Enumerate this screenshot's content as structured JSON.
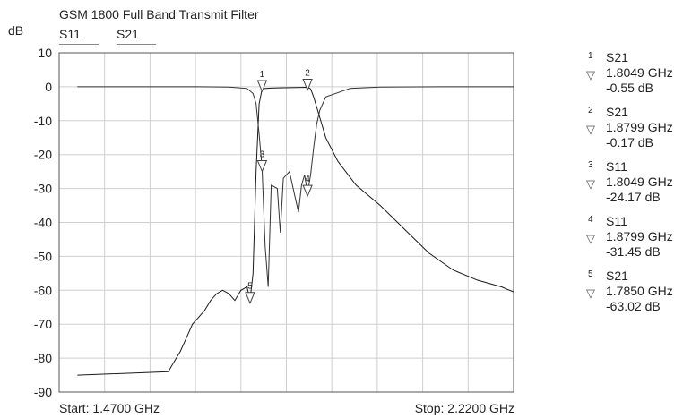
{
  "title": "GSM 1800 Full Band Transmit Filter",
  "unit_label": "dB",
  "legend": [
    "S11",
    "S21"
  ],
  "start_label": "Start: 1.4700 GHz",
  "stop_label": "Stop: 2.2200 GHz",
  "markers": [
    {
      "id": "1",
      "trace": "S21",
      "freq": "1.8049 GHz",
      "value": "-0.55 dB"
    },
    {
      "id": "2",
      "trace": "S21",
      "freq": "1.8799 GHz",
      "value": "-0.17 dB"
    },
    {
      "id": "3",
      "trace": "S11",
      "freq": "1.8049 GHz",
      "value": "-24.17 dB"
    },
    {
      "id": "4",
      "trace": "S11",
      "freq": "1.8799 GHz",
      "value": "-31.45 dB"
    },
    {
      "id": "5",
      "trace": "S21",
      "freq": "1.7850 GHz",
      "value": "-63.02 dB"
    }
  ],
  "chart_data": {
    "type": "line",
    "title": "GSM 1800 Full Band Transmit Filter",
    "ylabel": "dB",
    "xlim": [
      1.47,
      2.22
    ],
    "ylim": [
      -90,
      10
    ],
    "x_ticks_count": 10,
    "y_ticks": [
      10,
      0,
      -10,
      -20,
      -30,
      -40,
      -50,
      -60,
      -70,
      -80,
      -90
    ],
    "grid": true,
    "series": [
      {
        "name": "S21",
        "x": [
          1.5,
          1.65,
          1.66,
          1.67,
          1.68,
          1.69,
          1.7,
          1.71,
          1.72,
          1.73,
          1.74,
          1.75,
          1.76,
          1.77,
          1.78,
          1.785,
          1.79,
          1.795,
          1.8,
          1.805,
          1.82,
          1.84,
          1.86,
          1.88,
          1.885,
          1.89,
          1.9,
          1.91,
          1.93,
          1.96,
          2.0,
          2.04,
          2.08,
          2.12,
          2.16,
          2.2,
          2.22
        ],
        "y": [
          -85,
          -84,
          -81,
          -78,
          -74,
          -70,
          -68,
          -66,
          -63,
          -61,
          -60,
          -61,
          -63,
          -60,
          -59,
          -63,
          -55,
          -25,
          -5,
          -0.55,
          -0.4,
          -0.3,
          -0.25,
          -0.17,
          -0.6,
          -3,
          -9,
          -15,
          -22,
          -29,
          -35,
          -42,
          -49,
          -54,
          -57,
          -59,
          -60.5
        ]
      },
      {
        "name": "S11",
        "x": [
          1.5,
          1.6,
          1.7,
          1.75,
          1.78,
          1.79,
          1.795,
          1.8,
          1.8049,
          1.81,
          1.815,
          1.82,
          1.83,
          1.835,
          1.84,
          1.85,
          1.86,
          1.865,
          1.87,
          1.875,
          1.8799,
          1.885,
          1.89,
          1.895,
          1.9,
          1.91,
          1.95,
          2.0,
          2.1,
          2.2,
          2.22
        ],
        "y": [
          0,
          0,
          0,
          -0.1,
          -0.5,
          -2,
          -5,
          -14,
          -24.17,
          -47,
          -59,
          -29,
          -30,
          -43,
          -27,
          -25,
          -33,
          -37,
          -29,
          -26,
          -31.45,
          -26,
          -18,
          -11,
          -7,
          -3,
          -0.5,
          -0.1,
          0,
          0,
          0
        ]
      }
    ],
    "markers": [
      {
        "id": "1",
        "trace": "S21",
        "x": 1.8049,
        "y": -0.55
      },
      {
        "id": "2",
        "trace": "S21",
        "x": 1.8799,
        "y": -0.17
      },
      {
        "id": "3",
        "trace": "S11",
        "x": 1.8049,
        "y": -24.17
      },
      {
        "id": "4",
        "trace": "S11",
        "x": 1.8799,
        "y": -31.45
      },
      {
        "id": "5",
        "trace": "S21",
        "x": 1.785,
        "y": -63.02
      }
    ]
  }
}
